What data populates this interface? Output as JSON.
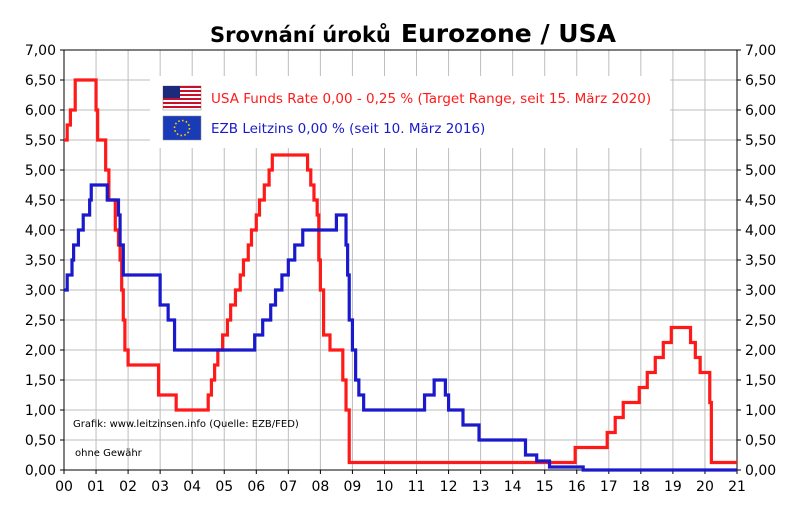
{
  "chart_data": {
    "type": "line",
    "title": "Srovnání úroků",
    "title_emphasis": "Eurozone / USA",
    "xlabel": "",
    "ylabel": "",
    "x_ticks": [
      "00",
      "01",
      "02",
      "03",
      "04",
      "05",
      "06",
      "07",
      "08",
      "09",
      "10",
      "11",
      "12",
      "13",
      "14",
      "15",
      "16",
      "17",
      "18",
      "19",
      "20",
      "21"
    ],
    "y_ticks": [
      "0,00",
      "0,50",
      "1,00",
      "1,50",
      "2,00",
      "2,50",
      "3,00",
      "3,50",
      "4,00",
      "4,50",
      "5,00",
      "5,50",
      "6,00",
      "6,50",
      "7,00"
    ],
    "xlim": [
      0,
      21
    ],
    "ylim": [
      0,
      7
    ],
    "grid": true,
    "legend_position": "top-center",
    "series": [
      {
        "name": "USA Funds Rate 0,00 - 0,25 % (Target Range, seit 15. März 2020)",
        "color": "#ff1a1a",
        "icon": "us-flag-icon",
        "points": [
          [
            0.0,
            5.5
          ],
          [
            0.1,
            5.75
          ],
          [
            0.2,
            6.0
          ],
          [
            0.35,
            6.5
          ],
          [
            1.0,
            6.0
          ],
          [
            1.05,
            5.5
          ],
          [
            1.3,
            5.0
          ],
          [
            1.4,
            4.5
          ],
          [
            1.6,
            4.0
          ],
          [
            1.7,
            3.75
          ],
          [
            1.75,
            3.5
          ],
          [
            1.8,
            3.0
          ],
          [
            1.85,
            2.5
          ],
          [
            1.9,
            2.0
          ],
          [
            2.0,
            1.75
          ],
          [
            2.95,
            1.25
          ],
          [
            3.5,
            1.0
          ],
          [
            4.5,
            1.25
          ],
          [
            4.6,
            1.5
          ],
          [
            4.7,
            1.75
          ],
          [
            4.8,
            2.0
          ],
          [
            4.95,
            2.25
          ],
          [
            5.1,
            2.5
          ],
          [
            5.2,
            2.75
          ],
          [
            5.35,
            3.0
          ],
          [
            5.5,
            3.25
          ],
          [
            5.6,
            3.5
          ],
          [
            5.75,
            3.75
          ],
          [
            5.85,
            4.0
          ],
          [
            6.0,
            4.25
          ],
          [
            6.1,
            4.5
          ],
          [
            6.25,
            4.75
          ],
          [
            6.4,
            5.0
          ],
          [
            6.5,
            5.25
          ],
          [
            7.6,
            5.0
          ],
          [
            7.7,
            4.75
          ],
          [
            7.8,
            4.5
          ],
          [
            7.9,
            4.25
          ],
          [
            7.95,
            3.5
          ],
          [
            8.0,
            3.0
          ],
          [
            8.1,
            2.25
          ],
          [
            8.3,
            2.0
          ],
          [
            8.7,
            1.5
          ],
          [
            8.8,
            1.0
          ],
          [
            8.9,
            0.125
          ],
          [
            15.95,
            0.375
          ],
          [
            16.95,
            0.625
          ],
          [
            17.2,
            0.875
          ],
          [
            17.45,
            1.125
          ],
          [
            17.95,
            1.375
          ],
          [
            18.2,
            1.625
          ],
          [
            18.45,
            1.875
          ],
          [
            18.7,
            2.125
          ],
          [
            18.95,
            2.375
          ],
          [
            19.55,
            2.125
          ],
          [
            19.7,
            1.875
          ],
          [
            19.85,
            1.625
          ],
          [
            20.15,
            1.125
          ],
          [
            20.2,
            0.125
          ],
          [
            21.0,
            0.125
          ]
        ]
      },
      {
        "name": "EZB Leitzins 0,00 %  (seit 10. März 2016)",
        "color": "#1a1acc",
        "icon": "eu-flag-icon",
        "points": [
          [
            0.0,
            3.0
          ],
          [
            0.1,
            3.25
          ],
          [
            0.25,
            3.5
          ],
          [
            0.3,
            3.75
          ],
          [
            0.45,
            4.0
          ],
          [
            0.6,
            4.25
          ],
          [
            0.8,
            4.5
          ],
          [
            0.85,
            4.75
          ],
          [
            1.35,
            4.5
          ],
          [
            1.7,
            4.25
          ],
          [
            1.75,
            3.75
          ],
          [
            1.85,
            3.25
          ],
          [
            3.0,
            2.75
          ],
          [
            3.25,
            2.5
          ],
          [
            3.45,
            2.0
          ],
          [
            5.95,
            2.25
          ],
          [
            6.2,
            2.5
          ],
          [
            6.45,
            2.75
          ],
          [
            6.6,
            3.0
          ],
          [
            6.8,
            3.25
          ],
          [
            7.0,
            3.5
          ],
          [
            7.2,
            3.75
          ],
          [
            7.45,
            4.0
          ],
          [
            8.5,
            4.25
          ],
          [
            8.8,
            3.75
          ],
          [
            8.85,
            3.25
          ],
          [
            8.9,
            2.5
          ],
          [
            9.0,
            2.0
          ],
          [
            9.1,
            1.5
          ],
          [
            9.2,
            1.25
          ],
          [
            9.35,
            1.0
          ],
          [
            11.25,
            1.25
          ],
          [
            11.55,
            1.5
          ],
          [
            11.9,
            1.25
          ],
          [
            12.0,
            1.0
          ],
          [
            12.45,
            0.75
          ],
          [
            12.95,
            0.5
          ],
          [
            14.4,
            0.25
          ],
          [
            14.75,
            0.15
          ],
          [
            15.15,
            0.05
          ],
          [
            16.2,
            0.0
          ],
          [
            21.0,
            0.0
          ]
        ]
      }
    ],
    "annotations": {
      "source": "Grafik: www.leitzinsen.info (Quelle: EZB/FED)",
      "disclaimer": "ohne Gewähr"
    }
  }
}
